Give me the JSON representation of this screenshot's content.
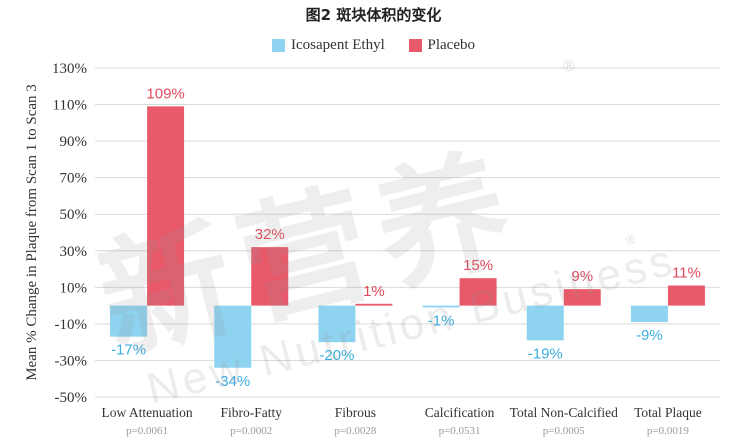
{
  "title": "图2  斑块体积的变化",
  "watermark": {
    "main": "新营养",
    "sub": "New Nutrition Business",
    "reg": "®"
  },
  "colors": {
    "icosapent": "#8ed3f0",
    "placebo": "#e85a6a",
    "icosapent_label": "#3aaee0",
    "placebo_label": "#e04a5c",
    "axis_text": "#333333",
    "grid": "#d9d9d9"
  },
  "chart_data": {
    "type": "bar",
    "ylabel": "Mean % Change in Plaque from Scan 1 to Scan 3",
    "ylim": [
      -50,
      130
    ],
    "yticks": [
      130,
      110,
      90,
      70,
      50,
      30,
      10,
      -10,
      -30,
      -50
    ],
    "ytick_labels": [
      "130%",
      "110%",
      "90%",
      "70%",
      "50%",
      "30%",
      "10%",
      "-10%",
      "-30%",
      "-50%"
    ],
    "grid": true,
    "legend_position": "top",
    "categories": [
      "Low Attenuation",
      "Fibro-Fatty",
      "Fibrous",
      "Calcification",
      "Total Non-Calcified",
      "Total Plaque"
    ],
    "p_values": [
      "p=0.0061",
      "p=0.0002",
      "p=0.0028",
      "p=0.0531",
      "p=0.0005",
      "p=0.0019"
    ],
    "series": [
      {
        "name": "Icosapent Ethyl",
        "values": [
          -17,
          -34,
          -20,
          -1,
          -19,
          -9
        ],
        "labels": [
          "-17%",
          "-34%",
          "-20%",
          "-1%",
          "-19%",
          "-9%"
        ]
      },
      {
        "name": "Placebo",
        "values": [
          109,
          32,
          1,
          15,
          9,
          11
        ],
        "labels": [
          "109%",
          "32%",
          "1%",
          "15%",
          "9%",
          "11%"
        ]
      }
    ]
  }
}
